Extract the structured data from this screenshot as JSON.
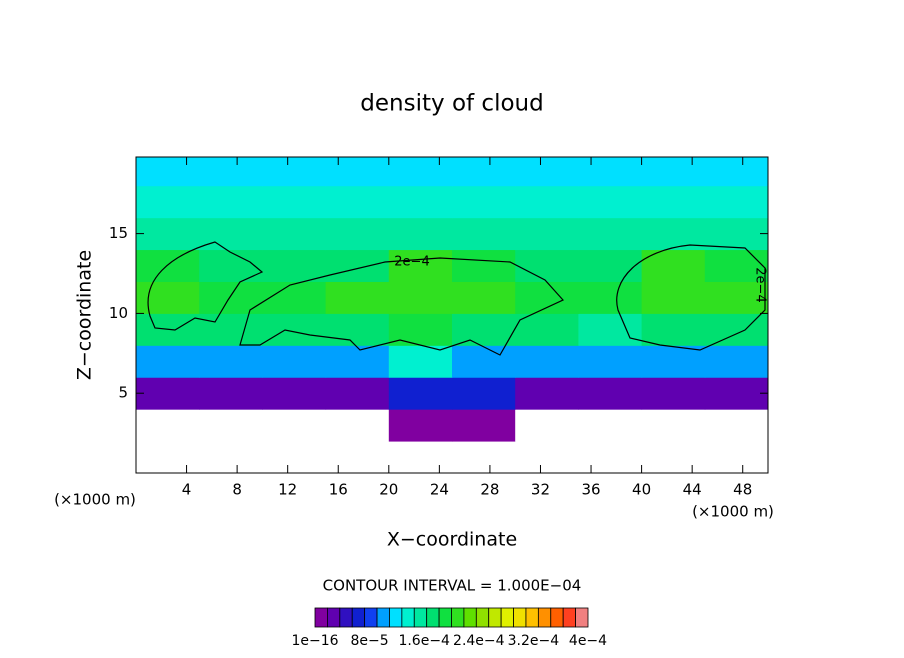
{
  "chart_data": {
    "type": "contour",
    "title": "density of cloud",
    "x_label": "X−coordinate",
    "y_label": "Z−coordinate",
    "x_unit_label": "(×1000 m)",
    "z_unit_label": "(×1000 m)",
    "contour_interval": "CONTOUR INTERVAL = 1.000E−04",
    "xlim": [
      0,
      50
    ],
    "ylim": [
      0,
      19.8
    ],
    "xticks": [
      4,
      8,
      12,
      16,
      20,
      24,
      28,
      32,
      36,
      40,
      44,
      48
    ],
    "yticks": [
      5,
      10,
      15
    ],
    "x": [
      2.5,
      7.5,
      12.5,
      17.5,
      22.5,
      27.5,
      32.5,
      37.5,
      42.5,
      47.5
    ],
    "z": [
      1,
      3,
      5,
      7,
      9,
      11,
      13,
      15,
      17,
      19
    ],
    "values": [
      [
        0,
        0,
        0,
        0,
        0,
        0,
        0,
        0,
        0,
        0
      ],
      [
        0,
        0,
        0,
        0,
        1e-05,
        1e-05,
        0,
        0,
        0,
        0
      ],
      [
        3e-05,
        3e-05,
        3e-05,
        3e-05,
        6e-05,
        6e-05,
        3e-05,
        3e-05,
        3e-05,
        3e-05
      ],
      [
        0.0001,
        0.0001,
        0.0001,
        0.0001,
        0.00013,
        0.0001,
        0.0001,
        0.0001,
        0.0001,
        0.0001
      ],
      [
        0.00017,
        0.00018,
        0.00018,
        0.00017,
        0.00019,
        0.00017,
        0.00017,
        0.00016,
        0.00017,
        0.00017
      ],
      [
        0.00021,
        0.00019,
        0.00019,
        0.00021,
        0.00021,
        0.00021,
        0.00019,
        0.00019,
        0.00021,
        0.00021
      ],
      [
        0.00019,
        0.00018,
        0.00018,
        0.00018,
        0.000205,
        0.00019,
        0.00018,
        0.00018,
        0.000205,
        0.00019
      ],
      [
        0.00016,
        0.00016,
        0.00016,
        0.00016,
        0.00016,
        0.00016,
        0.00016,
        0.00016,
        0.00016,
        0.00016
      ],
      [
        0.00014,
        0.00014,
        0.00014,
        0.00014,
        0.00014,
        0.00014,
        0.00014,
        0.00014,
        0.00014,
        0.00014
      ],
      [
        0.00012,
        0.00012,
        0.00012,
        0.00012,
        0.00012,
        0.00012,
        0.00012,
        0.00012,
        0.00012,
        0.00012
      ]
    ],
    "contour_levels": [
      {
        "value": 0.0002,
        "label": "2e−4"
      }
    ],
    "colorbar": {
      "ticks": [
        {
          "value": 1e-16,
          "label": "1e−16"
        },
        {
          "value": 8e-05,
          "label": "8e−5"
        },
        {
          "value": 0.00016,
          "label": "1.6e−4"
        },
        {
          "value": 0.00024,
          "label": "2.4e−4"
        },
        {
          "value": 0.00032,
          "label": "3.2e−4"
        },
        {
          "value": 0.0004,
          "label": "4e−4"
        }
      ],
      "colors": [
        "#8000a0",
        "#6000b0",
        "#3010c0",
        "#1020d0",
        "#1040f0",
        "#00a0ff",
        "#00e0ff",
        "#00f0d0",
        "#00e8a0",
        "#00e070",
        "#10e040",
        "#30e020",
        "#60e000",
        "#90e000",
        "#c0e800",
        "#e0f000",
        "#f0e000",
        "#ffc000",
        "#ff9000",
        "#ff6000",
        "#ff4020",
        "#f08080"
      ]
    }
  }
}
